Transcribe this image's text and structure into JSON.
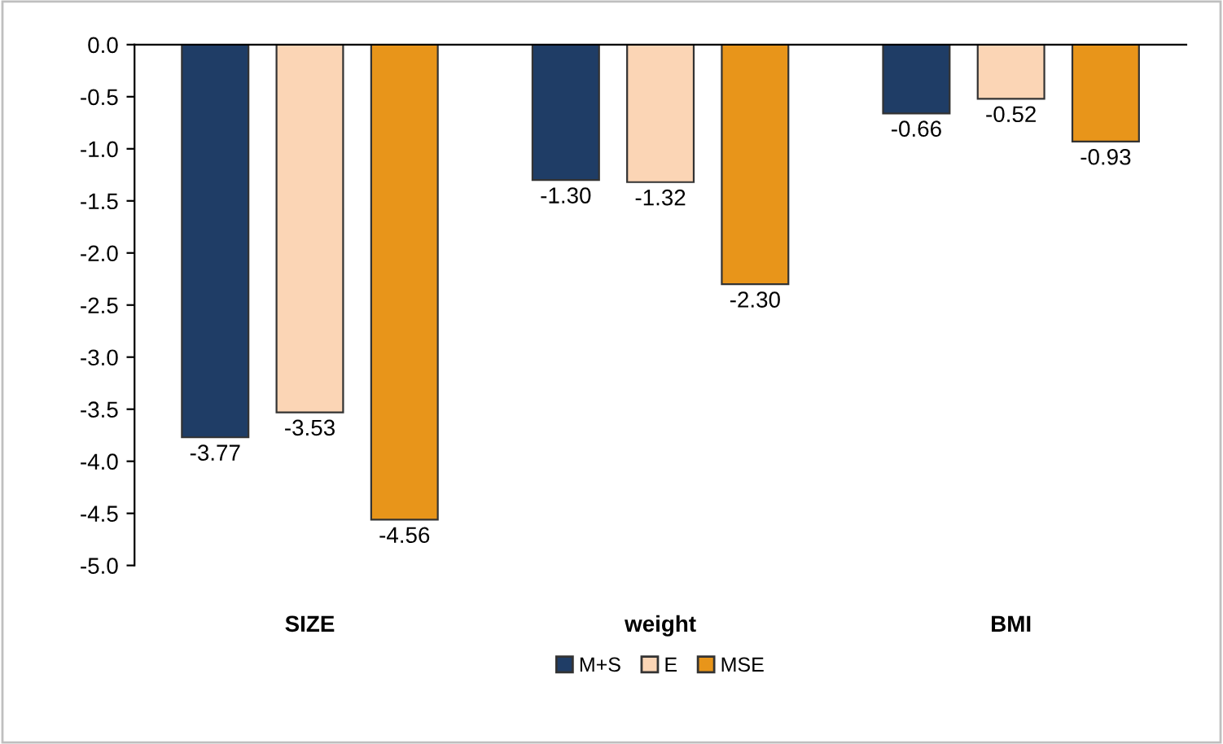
{
  "chart_data": {
    "type": "bar",
    "categories": [
      "SIZE",
      "weight",
      "BMI"
    ],
    "series": [
      {
        "name": "M+S",
        "color": "#1f3d66",
        "values": [
          -3.77,
          -1.3,
          -0.66
        ],
        "value_labels": [
          "-3.77",
          "-1.30",
          "-0.66"
        ]
      },
      {
        "name": "E",
        "color": "#fbd5b5",
        "values": [
          -3.53,
          -1.32,
          -0.52
        ],
        "value_labels": [
          "-3.53",
          "-1.32",
          "-0.52"
        ]
      },
      {
        "name": "MSE",
        "color": "#e8951a",
        "values": [
          -4.56,
          -2.3,
          -0.93
        ],
        "value_labels": [
          "-4.56",
          "-2.30",
          "-0.93"
        ]
      }
    ],
    "ylim": [
      -5,
      0
    ],
    "yticks": [
      {
        "value": 0,
        "label": "0.0"
      },
      {
        "value": -0.5,
        "label": "-0.5"
      },
      {
        "value": -1,
        "label": "-1.0"
      },
      {
        "value": -1.5,
        "label": "-1.5"
      },
      {
        "value": -2,
        "label": "-2.0"
      },
      {
        "value": -2.5,
        "label": "-2.5"
      },
      {
        "value": -3,
        "label": "-3.0"
      },
      {
        "value": -3.5,
        "label": "-3.5"
      },
      {
        "value": -4,
        "label": "-4.0"
      },
      {
        "value": -4.5,
        "label": "-4.5"
      },
      {
        "value": -5,
        "label": "-5.0"
      }
    ],
    "grid": false,
    "legend": "bottom"
  }
}
